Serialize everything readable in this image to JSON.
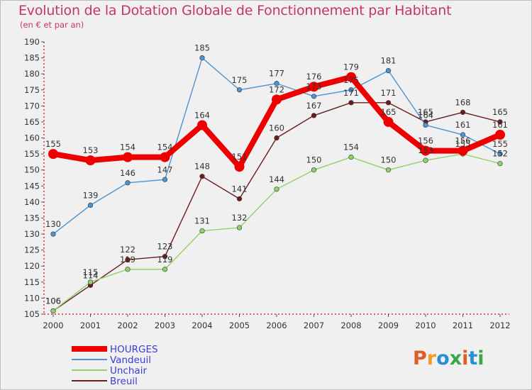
{
  "header": {
    "title": "Evolution de la Dotation Globale de Fonctionnement par Habitant",
    "subtitle": "(en € et par an)"
  },
  "brand": {
    "text": "Proxiti",
    "colors": [
      "#e05a2a",
      "#f0a020",
      "#2a8fd6",
      "#3aa84a",
      "#e05a2a",
      "#2a8fd6",
      "#3aa84a"
    ]
  },
  "chart_data": {
    "type": "line",
    "title": "Evolution de la Dotation Globale de Fonctionnement par Habitant",
    "subtitle": "(en € et par an)",
    "x": [
      "2000",
      "2001",
      "2002",
      "2003",
      "2004",
      "2005",
      "2006",
      "2007",
      "2008",
      "2009",
      "2010",
      "2011",
      "2012"
    ],
    "ylim": [
      105,
      190
    ],
    "yticks": [
      105,
      110,
      115,
      120,
      125,
      130,
      135,
      140,
      145,
      150,
      155,
      160,
      165,
      170,
      175,
      180,
      185,
      190
    ],
    "grid": false,
    "legend_position": "bottom-left",
    "series": [
      {
        "name": "HOURGES",
        "color": "#ee0000",
        "values": [
          155,
          153,
          154,
          154,
          164,
          151,
          172,
          176,
          179,
          165,
          156,
          156,
          161
        ]
      },
      {
        "name": "Vandeuil",
        "color": "#4d94d0",
        "values": [
          130,
          139,
          146,
          147,
          185,
          175,
          177,
          173,
          175,
          181,
          164,
          161,
          155
        ]
      },
      {
        "name": "Unchair",
        "color": "#8fd16a",
        "values": [
          106,
          115,
          119,
          119,
          131,
          132,
          144,
          150,
          154,
          150,
          153,
          155,
          152
        ]
      },
      {
        "name": "Breuil",
        "color": "#6b1d1d",
        "values": [
          106,
          114,
          122,
          123,
          148,
          141,
          160,
          167,
          171,
          171,
          165,
          168,
          165
        ]
      }
    ]
  }
}
